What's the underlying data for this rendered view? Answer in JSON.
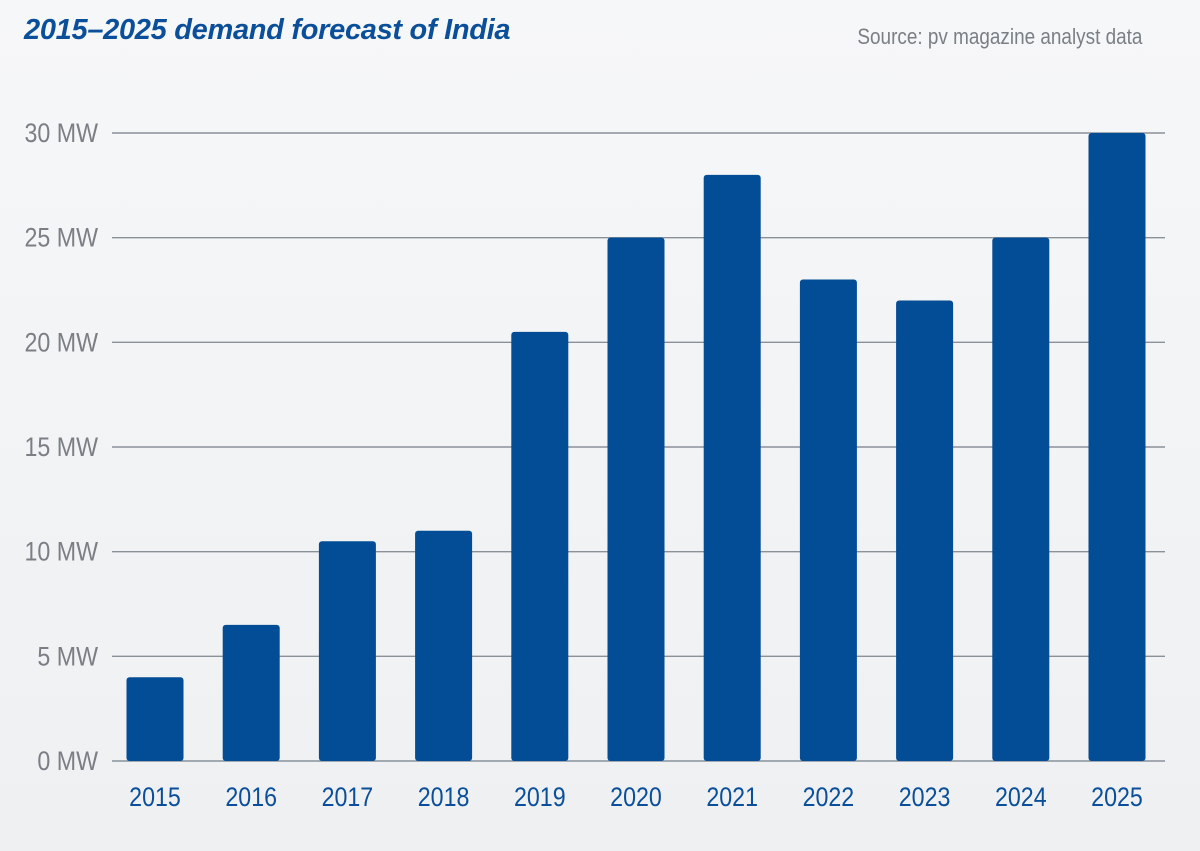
{
  "chart_data": {
    "type": "bar",
    "title": "2015–2025 demand forecast of India",
    "source": "Source: pv magazine analyst data",
    "categories": [
      "2015",
      "2016",
      "2017",
      "2018",
      "2019",
      "2020",
      "2021",
      "2022",
      "2023",
      "2024",
      "2025"
    ],
    "values": [
      4,
      6.5,
      10.5,
      11,
      20.5,
      25,
      28,
      23,
      22,
      25,
      30
    ],
    "yticks": [
      "0 MW",
      "5 MW",
      "10 MW",
      "15 MW",
      "20 MW",
      "25 MW",
      "30 MW"
    ],
    "ylim": [
      0,
      30
    ],
    "xlabel": "",
    "ylabel": "",
    "grid": true,
    "legend": "none",
    "colors": {
      "bar": "#034c96",
      "grid": "#8a9199",
      "title": "#0b4f9a",
      "tick_x": "#0b4f9a",
      "tick_y": "#7b7f85"
    }
  }
}
